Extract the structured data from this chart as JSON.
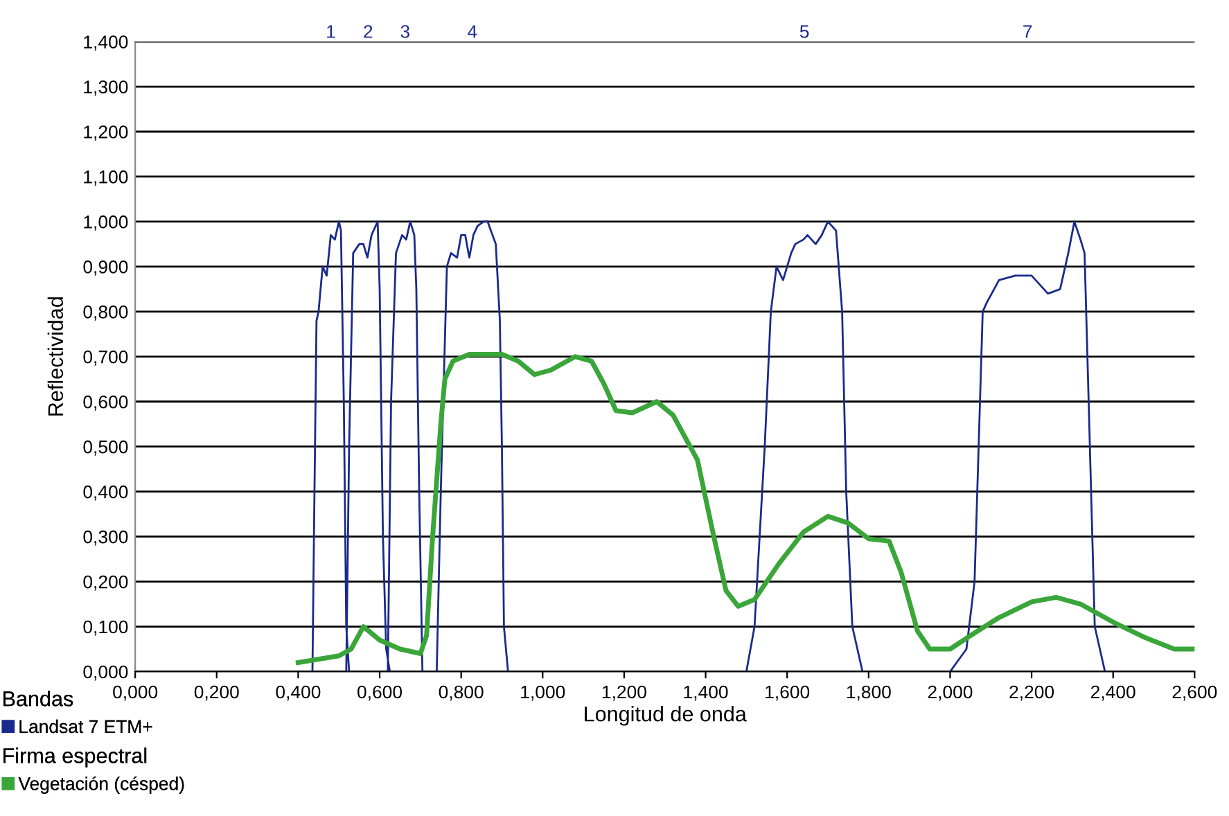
{
  "chart_data": {
    "type": "line",
    "xlabel": "Longitud de onda",
    "ylabel": "Reflectividad",
    "xlim": [
      0,
      2.6
    ],
    "ylim": [
      0,
      1.4
    ],
    "xticks": [
      {
        "value": 0,
        "label": "0,000"
      },
      {
        "value": 0.2,
        "label": "0,200"
      },
      {
        "value": 0.4,
        "label": "0,400"
      },
      {
        "value": 0.6,
        "label": "0,600"
      },
      {
        "value": 0.8,
        "label": "0,800"
      },
      {
        "value": 1.0,
        "label": "1,000"
      },
      {
        "value": 1.2,
        "label": "1,200"
      },
      {
        "value": 1.4,
        "label": "1,400"
      },
      {
        "value": 1.6,
        "label": "1,600"
      },
      {
        "value": 1.8,
        "label": "1,800"
      },
      {
        "value": 2.0,
        "label": "2,000"
      },
      {
        "value": 2.2,
        "label": "2,200"
      },
      {
        "value": 2.4,
        "label": "2,400"
      },
      {
        "value": 2.6,
        "label": "2,600"
      }
    ],
    "yticks": [
      {
        "value": 0,
        "label": "0,000"
      },
      {
        "value": 0.1,
        "label": "0,100"
      },
      {
        "value": 0.2,
        "label": "0,200"
      },
      {
        "value": 0.3,
        "label": "0,300"
      },
      {
        "value": 0.4,
        "label": "0,400"
      },
      {
        "value": 0.5,
        "label": "0,500"
      },
      {
        "value": 0.6,
        "label": "0,600"
      },
      {
        "value": 0.7,
        "label": "0,700"
      },
      {
        "value": 0.8,
        "label": "0,800"
      },
      {
        "value": 0.9,
        "label": "0,900"
      },
      {
        "value": 1.0,
        "label": "1,000"
      },
      {
        "value": 1.1,
        "label": "1,100"
      },
      {
        "value": 1.2,
        "label": "1,200"
      },
      {
        "value": 1.3,
        "label": "1,300"
      },
      {
        "value": 1.4,
        "label": "1,400"
      }
    ],
    "grid": "y",
    "legend": "bottom left",
    "marker": "none",
    "line_style": "solid",
    "annotations": [
      "Bandas",
      "Firma espectral",
      "1",
      "2",
      "3",
      "4",
      "5",
      "7"
    ],
    "series": [
      {
        "name": "Landsat 7 ETM+",
        "color": "#1a2a8c",
        "x": [
          0.435,
          0.44,
          0.445,
          0.45,
          0.46,
          0.47,
          0.48,
          0.49,
          0.5,
          0.505,
          0.512,
          0.518,
          0.525,
          null,
          0.518,
          0.525,
          0.535,
          0.55,
          0.56,
          0.57,
          0.58,
          0.595,
          0.6,
          0.608,
          0.616,
          0.625,
          null,
          0.62,
          0.628,
          0.64,
          0.655,
          0.665,
          0.675,
          0.685,
          0.69,
          0.697,
          0.705,
          null,
          0.74,
          0.75,
          0.765,
          0.775,
          0.79,
          0.8,
          0.81,
          0.82,
          0.83,
          0.84,
          0.855,
          0.865,
          0.885,
          0.895,
          0.9,
          0.905,
          0.915,
          null,
          1.5,
          1.52,
          1.545,
          1.56,
          1.574,
          1.59,
          1.61,
          1.62,
          1.64,
          1.65,
          1.67,
          1.685,
          1.7,
          1.72,
          1.735,
          1.745,
          1.76,
          1.785,
          null,
          2.0,
          2.04,
          2.06,
          2.07,
          2.08,
          2.09,
          2.12,
          2.16,
          2.2,
          2.24,
          2.27,
          2.29,
          2.305,
          2.32,
          2.33,
          2.34,
          2.355,
          2.38
        ],
        "values": [
          0,
          0.4,
          0.78,
          0.8,
          0.9,
          0.88,
          0.97,
          0.96,
          1.0,
          0.98,
          0.6,
          0.1,
          0,
          null,
          0,
          0.5,
          0.93,
          0.95,
          0.95,
          0.92,
          0.97,
          1.0,
          0.85,
          0.3,
          0.05,
          0,
          null,
          0,
          0.6,
          0.93,
          0.97,
          0.96,
          1.0,
          0.97,
          0.85,
          0.4,
          0,
          null,
          0,
          0.4,
          0.9,
          0.93,
          0.92,
          0.97,
          0.97,
          0.92,
          0.97,
          0.99,
          1.0,
          1.0,
          0.95,
          0.78,
          0.5,
          0.1,
          0,
          null,
          0,
          0.1,
          0.5,
          0.8,
          0.9,
          0.87,
          0.93,
          0.95,
          0.96,
          0.97,
          0.95,
          0.97,
          1.0,
          0.98,
          0.8,
          0.4,
          0.1,
          0,
          null,
          0,
          0.05,
          0.2,
          0.5,
          0.8,
          0.82,
          0.87,
          0.88,
          0.88,
          0.84,
          0.85,
          0.93,
          1.0,
          0.96,
          0.93,
          0.6,
          0.1,
          0
        ]
      },
      {
        "name": "Vegetación (césped)",
        "color": "#3aa63a",
        "x": [
          0.4,
          0.5,
          0.53,
          0.56,
          0.6,
          0.65,
          0.7,
          0.715,
          0.73,
          0.75,
          0.76,
          0.78,
          0.82,
          0.9,
          0.94,
          0.98,
          1.02,
          1.08,
          1.12,
          1.15,
          1.18,
          1.22,
          1.28,
          1.32,
          1.38,
          1.42,
          1.45,
          1.48,
          1.52,
          1.58,
          1.64,
          1.7,
          1.75,
          1.8,
          1.85,
          1.88,
          1.92,
          1.95,
          2.0,
          2.05,
          2.12,
          2.2,
          2.26,
          2.32,
          2.4,
          2.48,
          2.55,
          2.6
        ],
        "values": [
          0.02,
          0.035,
          0.05,
          0.1,
          0.07,
          0.05,
          0.04,
          0.08,
          0.3,
          0.55,
          0.65,
          0.69,
          0.705,
          0.705,
          0.69,
          0.66,
          0.67,
          0.7,
          0.69,
          0.64,
          0.58,
          0.575,
          0.6,
          0.57,
          0.47,
          0.3,
          0.18,
          0.145,
          0.16,
          0.24,
          0.31,
          0.345,
          0.33,
          0.295,
          0.29,
          0.22,
          0.09,
          0.05,
          0.05,
          0.08,
          0.12,
          0.155,
          0.165,
          0.15,
          0.11,
          0.075,
          0.05,
          0.05
        ]
      }
    ]
  }
}
